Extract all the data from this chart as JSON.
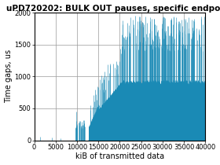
{
  "title": "uPD720202: BULK OUT pauses, specific endpoint",
  "xlabel": "kiB of transmitted data",
  "ylabel": "Time gaps, us",
  "xlim": [
    0,
    40000
  ],
  "ylim": [
    0,
    2000
  ],
  "xticks": [
    0,
    5000,
    10000,
    15000,
    20000,
    25000,
    30000,
    35000,
    40000
  ],
  "yticks": [
    0,
    500,
    1000,
    1500,
    2000
  ],
  "bar_color": "#1a8ab5",
  "background_color": "#ffffff",
  "grid_color": "#999999",
  "title_fontsize": 7.5,
  "axis_fontsize": 7.0,
  "tick_fontsize": 6.0,
  "phase1_end": 9500,
  "phase2_end": 13500,
  "phase3_end": 15000,
  "phase4_end": 20500,
  "phase5_end": 40000,
  "seed": 1234
}
